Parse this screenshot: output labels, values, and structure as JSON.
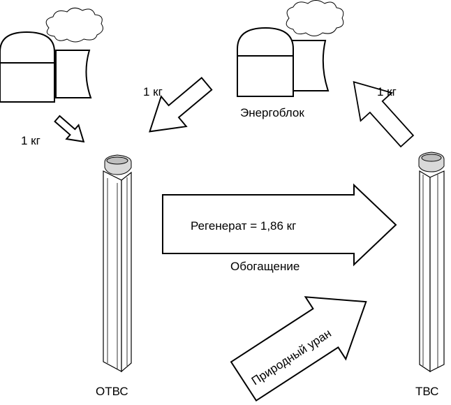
{
  "labels": {
    "power_unit": "Энергоблок",
    "mass_left": "1 кг",
    "mass_center": "1 кг",
    "mass_right": "1 кг",
    "regenerate": "Регенерат = 1,86 кг",
    "enrichment": "Обогащение",
    "natural_uranium": "Природный уран",
    "spent_fuel_assembly": "ОТВС",
    "fuel_assembly": "ТВС"
  },
  "icons": [
    "reactor-building-icon",
    "cooling-tower-icon",
    "steam-cloud-icon",
    "fuel-assembly-icon",
    "arrow-icon"
  ],
  "colors": {
    "stroke": "#000000",
    "fill": "#ffffff",
    "assembly_shade": "#d9d9d9"
  }
}
